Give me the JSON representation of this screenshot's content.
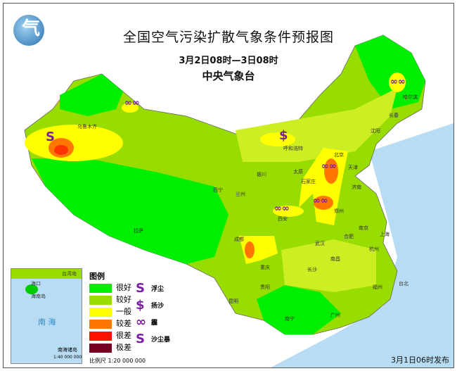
{
  "header": {
    "title": "全国空气污染扩散气象条件预报图",
    "period": "3月2日08时—3日08时",
    "issuer": "中央气象台"
  },
  "legend": {
    "title": "图例",
    "classes": [
      {
        "label": "很好",
        "color": "#00ee00"
      },
      {
        "label": "较好",
        "color": "#99dd00"
      },
      {
        "label": "一般",
        "color": "#ffff00"
      },
      {
        "label": "较差",
        "color": "#ff7700"
      },
      {
        "label": "很差",
        "color": "#ff1100"
      },
      {
        "label": "极差",
        "color": "#770022"
      }
    ],
    "symbols": [
      {
        "icon": "floating-dust-icon",
        "glyph": "S",
        "label": "浮尘"
      },
      {
        "icon": "blowing-sand-icon",
        "glyph": "$",
        "label": "扬沙"
      },
      {
        "icon": "haze-icon",
        "glyph": "∞",
        "label": "霾"
      },
      {
        "icon": "sandstorm-icon",
        "glyph": "S",
        "label": "沙尘暴"
      }
    ],
    "scale": "比例尺  1:20 000 000"
  },
  "inset": {
    "sea": "南 海",
    "title": "南海诸岛",
    "scale": "1:40 000 000",
    "labels": [
      "海口",
      "海南岛",
      "台湾岛"
    ]
  },
  "cities": [
    "北京",
    "天津",
    "石家庄",
    "太原",
    "郑州",
    "济南",
    "西安",
    "兰州",
    "西宁",
    "成都",
    "重庆",
    "武汉",
    "长沙",
    "南京",
    "上海",
    "杭州",
    "福州",
    "广州",
    "南宁",
    "昆明",
    "贵阳",
    "拉萨",
    "乌鲁木齐",
    "呼和浩特",
    "银川",
    "沈阳",
    "长春",
    "哈尔滨",
    "合肥",
    "南昌",
    "台北"
  ],
  "issue_time": "3月1日06时发布",
  "colors": {
    "sea": "#b7dcf3",
    "land_outside": "#ffffff",
    "symbol": "#7a1fa0"
  }
}
